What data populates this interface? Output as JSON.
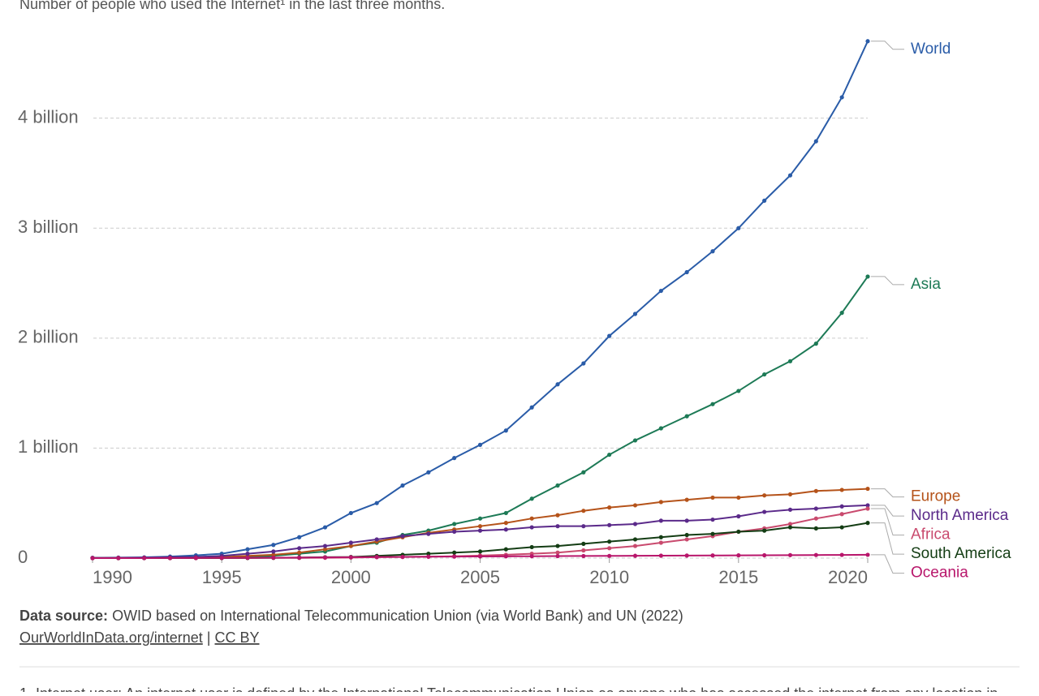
{
  "chart_data": {
    "type": "line",
    "subtitle": "Number of people who used the Internet¹ in the last three months.",
    "x": [
      1990,
      1991,
      1992,
      1993,
      1994,
      1995,
      1996,
      1997,
      1998,
      1999,
      2000,
      2001,
      2002,
      2003,
      2004,
      2005,
      2006,
      2007,
      2008,
      2009,
      2010,
      2011,
      2012,
      2013,
      2014,
      2015,
      2016,
      2017,
      2018,
      2019,
      2020
    ],
    "xlim": [
      1990,
      2020
    ],
    "xticks": [
      1990,
      1995,
      2000,
      2005,
      2010,
      2015,
      2020
    ],
    "ylim": [
      0,
      4750000000.0
    ],
    "yticks": [
      0,
      {
        "value": 1000000000.0,
        "label": "1 billion"
      },
      {
        "value": 2000000000.0,
        "label": "2 billion"
      },
      {
        "value": 3000000000.0,
        "label": "3 billion"
      },
      {
        "value": 4000000000.0,
        "label": "4 billion"
      }
    ],
    "grid": true,
    "series": [
      {
        "name": "World",
        "color": "#2a5ca8",
        "values": [
          2600000.0,
          4400000.0,
          7000000.0,
          14000000.0,
          25000000.0,
          40000000.0,
          80000000.0,
          120000000.0,
          190000000.0,
          280000000.0,
          410000000.0,
          500000000.0,
          660000000.0,
          780000000.0,
          910000000.0,
          1030000000.0,
          1160000000.0,
          1370000000.0,
          1580000000.0,
          1770000000.0,
          2020000000.0,
          2220000000.0,
          2430000000.0,
          2600000000.0,
          2790000000.0,
          3000000000.0,
          3250000000.0,
          3480000000.0,
          3790000000.0,
          4190000000.0,
          4700000000.0
        ]
      },
      {
        "name": "Asia",
        "color": "#1d7a56",
        "values": [
          500000.0,
          800000.0,
          1200000.0,
          2000000.0,
          4000000.0,
          7000000.0,
          10000000.0,
          20000000.0,
          40000000.0,
          60000000.0,
          110000000.0,
          140000000.0,
          210000000.0,
          250000000.0,
          310000000.0,
          360000000.0,
          410000000.0,
          540000000.0,
          660000000.0,
          780000000.0,
          940000000.0,
          1070000000.0,
          1180000000.0,
          1290000000.0,
          1400000000.0,
          1520000000.0,
          1670000000.0,
          1790000000.0,
          1950000000.0,
          2230000000.0,
          2560000000.0
        ]
      },
      {
        "name": "Europe",
        "color": "#b5531a",
        "values": [
          500000.0,
          800000.0,
          1300000.0,
          2000000.0,
          5000000.0,
          10000000.0,
          20000000.0,
          30000000.0,
          50000000.0,
          80000000.0,
          110000000.0,
          150000000.0,
          190000000.0,
          230000000.0,
          260000000.0,
          290000000.0,
          320000000.0,
          360000000.0,
          390000000.0,
          430000000.0,
          460000000.0,
          480000000.0,
          510000000.0,
          530000000.0,
          550000000.0,
          550000000.0,
          570000000.0,
          580000000.0,
          610000000.0,
          620000000.0,
          630000000.0
        ]
      },
      {
        "name": "North America",
        "color": "#5b2a8a",
        "values": [
          1500000.0,
          2500000.0,
          4000000.0,
          8000000.0,
          10000000.0,
          20000000.0,
          40000000.0,
          60000000.0,
          90000000.0,
          110000000.0,
          140000000.0,
          170000000.0,
          200000000.0,
          220000000.0,
          240000000.0,
          250000000.0,
          260000000.0,
          280000000.0,
          290000000.0,
          290000000.0,
          300000000.0,
          310000000.0,
          340000000.0,
          340000000.0,
          350000000.0,
          380000000.0,
          420000000.0,
          440000000.0,
          450000000.0,
          470000000.0,
          480000000.0
        ]
      },
      {
        "name": "Africa",
        "color": "#c94a6e",
        "values": [
          0,
          0,
          0,
          100000.0,
          200000.0,
          400000.0,
          1000000.0,
          1500000.0,
          2000000.0,
          3000000.0,
          5000000.0,
          8000000.0,
          10000000.0,
          13000000.0,
          17000000.0,
          23000000.0,
          30000000.0,
          40000000.0,
          50000000.0,
          70000000.0,
          90000000.0,
          110000000.0,
          140000000.0,
          170000000.0,
          200000000.0,
          240000000.0,
          270000000.0,
          310000000.0,
          360000000.0,
          400000000.0,
          450000000.0
        ]
      },
      {
        "name": "South America",
        "color": "#143d14",
        "values": [
          0,
          100000.0,
          200000.0,
          300000.0,
          500000.0,
          1000000.0,
          2000000.0,
          3000000.0,
          5000000.0,
          8000000.0,
          10000000.0,
          20000000.0,
          30000000.0,
          40000000.0,
          50000000.0,
          60000000.0,
          80000000.0,
          100000000.0,
          110000000.0,
          130000000.0,
          150000000.0,
          170000000.0,
          190000000.0,
          210000000.0,
          220000000.0,
          240000000.0,
          250000000.0,
          280000000.0,
          270000000.0,
          280000000.0,
          320000000.0
        ]
      },
      {
        "name": "Oceania",
        "color": "#b8166b",
        "values": [
          100000.0,
          200000.0,
          300000.0,
          500000.0,
          1000000.0,
          2000000.0,
          3000000.0,
          4000000.0,
          5000000.0,
          6000000.0,
          8000000.0,
          10000000.0,
          11000000.0,
          13000000.0,
          14000000.0,
          15000000.0,
          16000000.0,
          17000000.0,
          18000000.0,
          19000000.0,
          20000000.0,
          21000000.0,
          22000000.0,
          23000000.0,
          24000000.0,
          25000000.0,
          26000000.0,
          27000000.0,
          28000000.0,
          29000000.0,
          30000000.0
        ]
      }
    ],
    "source_label": "Data source:",
    "source": "OWID based on International Telecommunication Union (via World Bank) and UN (2022)",
    "links": [
      "OurWorldInData.org/internet",
      "CC BY"
    ],
    "link_separator": "|",
    "footnote": "1. Internet user: An internet user is defined by the International Telecommunication Union as anyone who has accessed the internet from any location in"
  }
}
